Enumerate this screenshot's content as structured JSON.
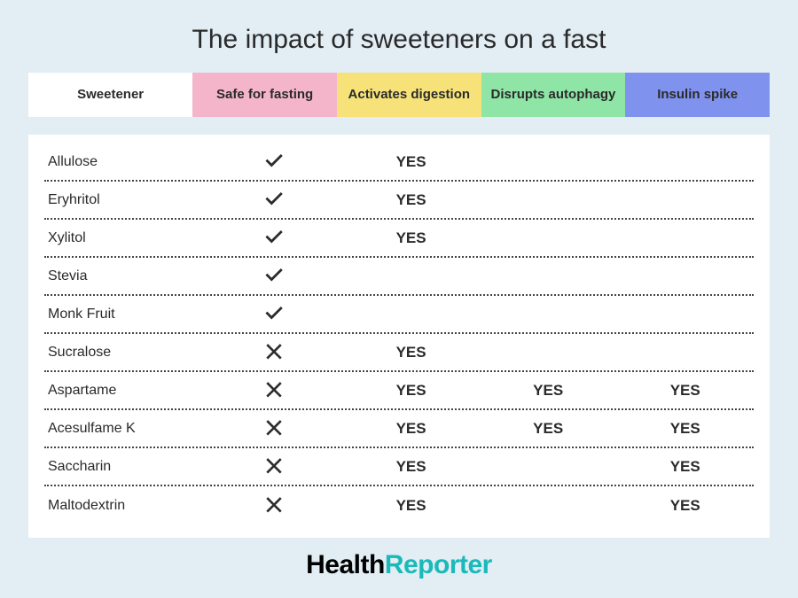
{
  "title": "The impact of sweeteners on a fast",
  "yes_label": "YES",
  "columns": [
    {
      "label": "Sweetener",
      "bg": "#ffffff"
    },
    {
      "label": "Safe for fasting",
      "bg": "#f4b5cb"
    },
    {
      "label": "Activates digestion",
      "bg": "#f7e27a"
    },
    {
      "label": "Disrupts autophagy",
      "bg": "#8ee5a6"
    },
    {
      "label": "Insulin spike",
      "bg": "#7f92ee"
    }
  ],
  "rows": [
    {
      "name": "Allulose",
      "safe": true,
      "digestion": true,
      "autophagy": false,
      "insulin": false
    },
    {
      "name": "Eryhritol",
      "safe": true,
      "digestion": true,
      "autophagy": false,
      "insulin": false
    },
    {
      "name": "Xylitol",
      "safe": true,
      "digestion": true,
      "autophagy": false,
      "insulin": false
    },
    {
      "name": "Stevia",
      "safe": true,
      "digestion": false,
      "autophagy": false,
      "insulin": false
    },
    {
      "name": "Monk Fruit",
      "safe": true,
      "digestion": false,
      "autophagy": false,
      "insulin": false
    },
    {
      "name": "Sucralose",
      "safe": false,
      "digestion": true,
      "autophagy": false,
      "insulin": false
    },
    {
      "name": "Aspartame",
      "safe": false,
      "digestion": true,
      "autophagy": true,
      "insulin": true
    },
    {
      "name": "Acesulfame K",
      "safe": false,
      "digestion": true,
      "autophagy": true,
      "insulin": true
    },
    {
      "name": "Saccharin",
      "safe": false,
      "digestion": true,
      "autophagy": false,
      "insulin": true
    },
    {
      "name": "Maltodextrin",
      "safe": false,
      "digestion": true,
      "autophagy": false,
      "insulin": true
    }
  ],
  "icon_color": "#2c2c2c",
  "background_color": "#e2edf4",
  "table_bg": "#ffffff",
  "row_border_color": "#444444",
  "brand": {
    "part1": "Health",
    "part2": "Reporter",
    "color1": "#000000",
    "color2": "#1bb9b9"
  },
  "fontsize": {
    "title": 30,
    "header": 15,
    "cell_name": 16,
    "yes": 17,
    "brand": 30
  }
}
